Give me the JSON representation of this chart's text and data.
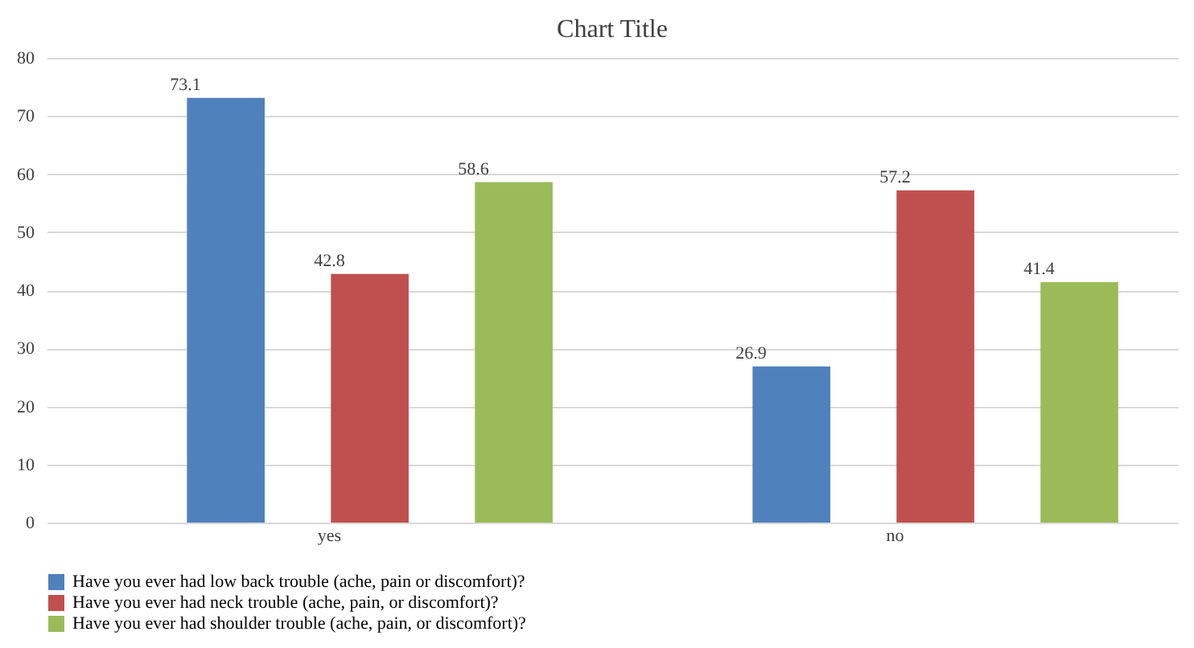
{
  "chart_data": {
    "type": "bar",
    "title": "Chart Title",
    "categories": [
      "yes",
      "no"
    ],
    "series": [
      {
        "name": "Have you ever had low back trouble (ache, pain or discomfort)?",
        "color": "#4f81bd",
        "values": [
          73.1,
          26.9
        ]
      },
      {
        "name": "Have you ever had neck trouble  (ache, pain, or discomfort)?",
        "color": "#c0504d",
        "values": [
          42.8,
          57.2
        ]
      },
      {
        "name": "Have you ever had shoulder trouble (ache, pain, or discomfort)?",
        "color": "#9bbb59",
        "values": [
          58.6,
          41.4
        ]
      }
    ],
    "ylim": [
      0,
      80
    ],
    "yticks": [
      0,
      10,
      20,
      30,
      40,
      50,
      60,
      70,
      80
    ],
    "grid": "y",
    "legend": "bottom",
    "data_labels": true
  }
}
